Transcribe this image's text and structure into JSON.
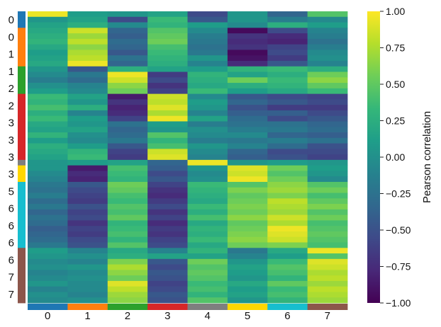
{
  "chart_data": {
    "type": "heatmap",
    "title": "",
    "xlabel": "",
    "ylabel": "",
    "colorscale": "viridis",
    "vlim": [
      -1,
      1
    ],
    "colorbar": {
      "label": "Pearson correlation",
      "ticks": [
        "1.00",
        "0.75",
        "0.50",
        "0.25",
        "0.00",
        "−0.25",
        "−0.50",
        "−0.75",
        "−1.00"
      ],
      "tick_values": [
        1.0,
        0.75,
        0.5,
        0.25,
        0.0,
        -0.25,
        -0.5,
        -0.75,
        -1.0
      ]
    },
    "columns": [
      "0",
      "1",
      "2",
      "3",
      "4",
      "5",
      "6",
      "7"
    ],
    "column_group_colors": [
      "#1f77b4",
      "#ff7f0e",
      "#2ca02c",
      "#d62728",
      "#7f7f7f",
      "#ffd700",
      "#17becf",
      "#8c564b"
    ],
    "row_tick_labels": [
      "0",
      "0",
      "1",
      "1",
      "2",
      "2",
      "3",
      "3",
      "3",
      "3",
      "5",
      "6",
      "6",
      "6",
      "6",
      "7",
      "7"
    ],
    "row_groups": [
      0,
      0,
      0,
      1,
      1,
      1,
      1,
      1,
      1,
      1,
      2,
      2,
      2,
      2,
      2,
      3,
      3,
      3,
      3,
      3,
      3,
      3,
      3,
      3,
      3,
      3,
      3,
      4,
      5,
      5,
      5,
      6,
      6,
      6,
      6,
      6,
      6,
      6,
      6,
      6,
      6,
      6,
      6,
      7,
      7,
      7,
      7,
      7,
      7,
      7,
      7,
      7,
      7
    ],
    "values": [
      [
        0.95,
        0.1,
        0.05,
        0.15,
        -0.55,
        0.05,
        -0.35,
        0.45
      ],
      [
        0.05,
        0.15,
        -0.55,
        0.35,
        -0.45,
        0.05,
        -0.15,
        -0.05
      ],
      [
        0.15,
        0.25,
        -0.05,
        0.3,
        0.1,
        -0.05,
        0.25,
        0.1
      ],
      [
        0.2,
        0.85,
        -0.35,
        0.45,
        -0.05,
        -0.95,
        -0.55,
        -0.1
      ],
      [
        0.25,
        0.7,
        -0.4,
        0.5,
        -0.15,
        -0.7,
        -0.75,
        -0.15
      ],
      [
        0.3,
        0.8,
        -0.3,
        0.55,
        -0.2,
        -0.75,
        -0.8,
        -0.25
      ],
      [
        0.2,
        0.65,
        -0.35,
        0.4,
        -0.25,
        -0.7,
        -0.6,
        -0.15
      ],
      [
        0.1,
        0.75,
        -0.45,
        0.35,
        -0.2,
        -0.95,
        -0.55,
        -0.05
      ],
      [
        0.15,
        0.8,
        -0.25,
        0.3,
        0.05,
        -0.9,
        -0.65,
        0.0
      ],
      [
        0.2,
        0.95,
        -0.35,
        0.25,
        -0.1,
        -0.75,
        -0.45,
        -0.1
      ],
      [
        0.05,
        -0.45,
        0.25,
        0.15,
        0.1,
        0.3,
        0.35,
        0.25
      ],
      [
        -0.05,
        -0.2,
        0.95,
        -0.65,
        0.3,
        0.15,
        0.25,
        0.55
      ],
      [
        -0.15,
        -0.3,
        0.85,
        -0.55,
        0.25,
        0.55,
        0.35,
        0.65
      ],
      [
        0.0,
        -0.1,
        0.65,
        -0.7,
        0.2,
        0.25,
        0.3,
        0.5
      ],
      [
        0.1,
        -0.05,
        0.55,
        -0.6,
        0.35,
        0.1,
        0.2,
        0.35
      ],
      [
        0.35,
        0.15,
        -0.85,
        0.85,
        -0.05,
        -0.45,
        -0.55,
        -0.6
      ],
      [
        0.3,
        0.05,
        -0.7,
        0.8,
        0.1,
        -0.35,
        -0.45,
        -0.55
      ],
      [
        0.4,
        0.25,
        -0.8,
        0.9,
        0.05,
        -0.5,
        -0.65,
        -0.65
      ],
      [
        0.25,
        -0.1,
        -0.75,
        0.75,
        -0.1,
        -0.4,
        -0.4,
        -0.55
      ],
      [
        0.35,
        0.1,
        -0.6,
        0.95,
        0.15,
        -0.3,
        -0.55,
        -0.45
      ],
      [
        0.2,
        0.05,
        -0.25,
        0.1,
        -0.15,
        -0.25,
        -0.25,
        -0.35
      ],
      [
        0.15,
        0.15,
        -0.35,
        0.05,
        0.0,
        -0.15,
        -0.2,
        -0.3
      ],
      [
        0.3,
        0.0,
        -0.3,
        0.45,
        -0.05,
        -0.05,
        -0.35,
        -0.4
      ],
      [
        0.1,
        -0.05,
        -0.2,
        0.3,
        -0.15,
        -0.2,
        -0.15,
        -0.25
      ],
      [
        0.25,
        0.1,
        -0.45,
        0.4,
        0.05,
        -0.1,
        -0.3,
        -0.5
      ],
      [
        0.2,
        0.3,
        -0.6,
        0.85,
        -0.05,
        -0.35,
        -0.55,
        -0.55
      ],
      [
        0.15,
        0.35,
        -0.65,
        0.9,
        -0.1,
        -0.4,
        -0.5,
        -0.6
      ],
      [
        0.05,
        0.1,
        0.15,
        -0.35,
        0.95,
        0.05,
        0.1,
        0.05
      ],
      [
        0.05,
        -0.85,
        0.4,
        -0.4,
        0.05,
        0.9,
        0.55,
        0.1
      ],
      [
        -0.05,
        -0.75,
        0.35,
        -0.55,
        -0.05,
        0.85,
        0.45,
        0.05
      ],
      [
        -0.1,
        -0.8,
        0.3,
        -0.45,
        0.0,
        0.95,
        0.55,
        -0.05
      ],
      [
        -0.2,
        -0.45,
        0.55,
        -0.6,
        0.35,
        0.45,
        0.65,
        0.45
      ],
      [
        -0.25,
        -0.55,
        0.5,
        -0.7,
        0.3,
        0.6,
        0.7,
        0.55
      ],
      [
        -0.15,
        -0.6,
        0.4,
        -0.75,
        0.25,
        0.5,
        0.6,
        0.4
      ],
      [
        -0.3,
        -0.65,
        0.35,
        -0.65,
        0.2,
        0.55,
        0.8,
        0.5
      ],
      [
        -0.2,
        -0.5,
        0.45,
        -0.55,
        0.35,
        0.6,
        0.75,
        0.6
      ],
      [
        -0.35,
        -0.6,
        0.4,
        -0.7,
        0.25,
        0.55,
        0.7,
        0.45
      ],
      [
        -0.25,
        -0.55,
        0.5,
        -0.6,
        0.4,
        0.65,
        0.85,
        0.55
      ],
      [
        -0.3,
        -0.7,
        0.3,
        -0.75,
        0.2,
        0.5,
        0.75,
        0.4
      ],
      [
        -0.4,
        -0.6,
        0.35,
        -0.65,
        0.3,
        0.55,
        0.95,
        0.45
      ],
      [
        -0.35,
        -0.65,
        0.4,
        -0.7,
        0.25,
        0.6,
        0.9,
        0.5
      ],
      [
        -0.3,
        -0.55,
        0.3,
        -0.6,
        0.35,
        0.65,
        0.85,
        0.45
      ],
      [
        -0.2,
        -0.5,
        0.45,
        -0.55,
        0.2,
        0.55,
        0.6,
        0.4
      ],
      [
        0.1,
        -0.1,
        0.2,
        -0.1,
        0.3,
        -0.2,
        0.2,
        0.95
      ],
      [
        0.05,
        0.0,
        0.25,
        0.15,
        0.15,
        -0.1,
        0.1,
        0.45
      ],
      [
        -0.05,
        -0.1,
        0.6,
        -0.45,
        0.55,
        0.05,
        0.35,
        0.9
      ],
      [
        0.0,
        0.05,
        0.75,
        -0.55,
        0.45,
        0.15,
        0.45,
        0.85
      ],
      [
        -0.1,
        -0.05,
        0.65,
        -0.45,
        0.5,
        0.1,
        0.4,
        0.75
      ],
      [
        -0.05,
        0.0,
        0.55,
        -0.5,
        0.45,
        0.05,
        0.3,
        0.8
      ],
      [
        0.05,
        -0.05,
        0.9,
        -0.6,
        0.35,
        0.2,
        0.5,
        0.7
      ],
      [
        -0.1,
        -0.05,
        0.8,
        -0.55,
        0.4,
        0.1,
        0.35,
        0.8
      ],
      [
        0.0,
        -0.1,
        0.7,
        -0.45,
        0.3,
        0.15,
        0.4,
        0.75
      ],
      [
        -0.05,
        0.0,
        0.65,
        -0.5,
        0.45,
        0.05,
        0.3,
        0.7
      ]
    ]
  }
}
